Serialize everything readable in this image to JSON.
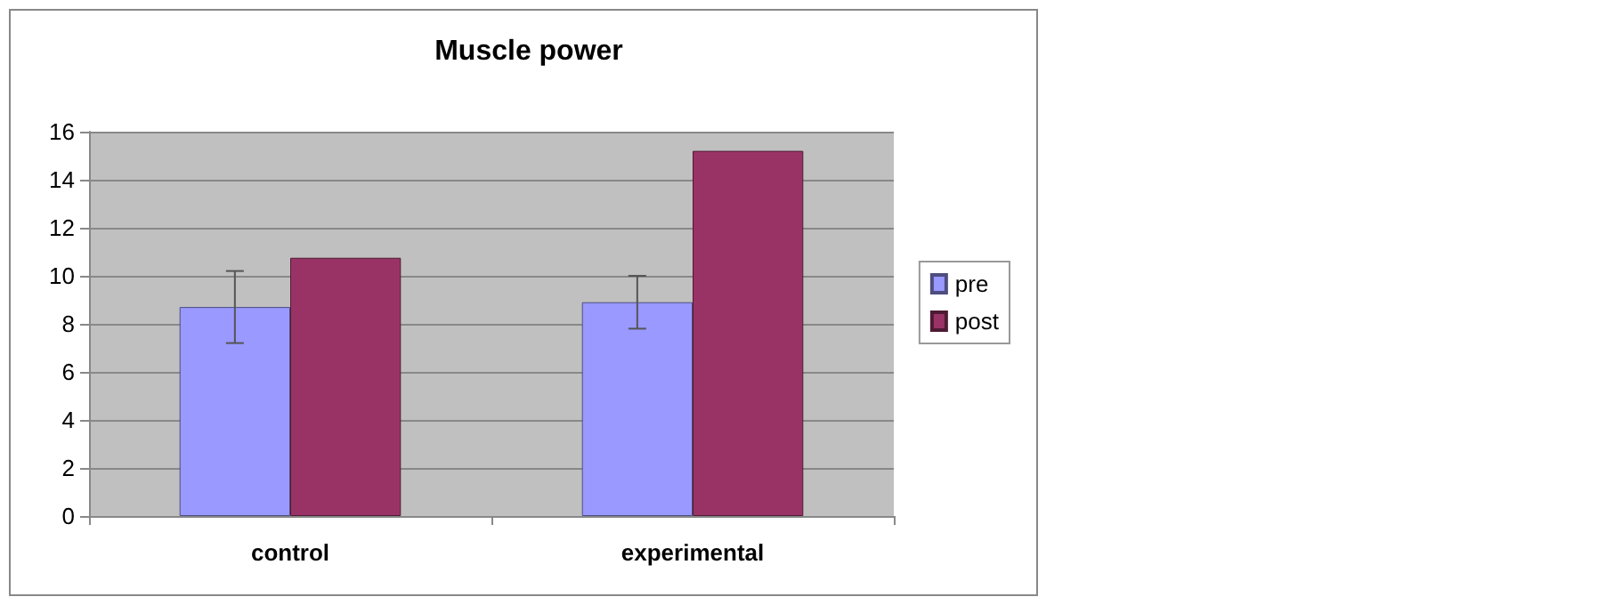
{
  "chart_data": {
    "type": "bar",
    "title": "Muscle power",
    "categories": [
      "control",
      "experimental"
    ],
    "series": [
      {
        "name": "pre",
        "color": "#9999ff",
        "values": [
          8.7,
          8.9
        ],
        "errors": [
          1.5,
          1.1
        ]
      },
      {
        "name": "post",
        "color": "#993366",
        "values": [
          10.75,
          15.2
        ]
      }
    ],
    "ylim": [
      0,
      16
    ],
    "yticks": [
      0,
      2,
      4,
      6,
      8,
      10,
      12,
      14,
      16
    ],
    "grid": "y",
    "legend": "right"
  }
}
